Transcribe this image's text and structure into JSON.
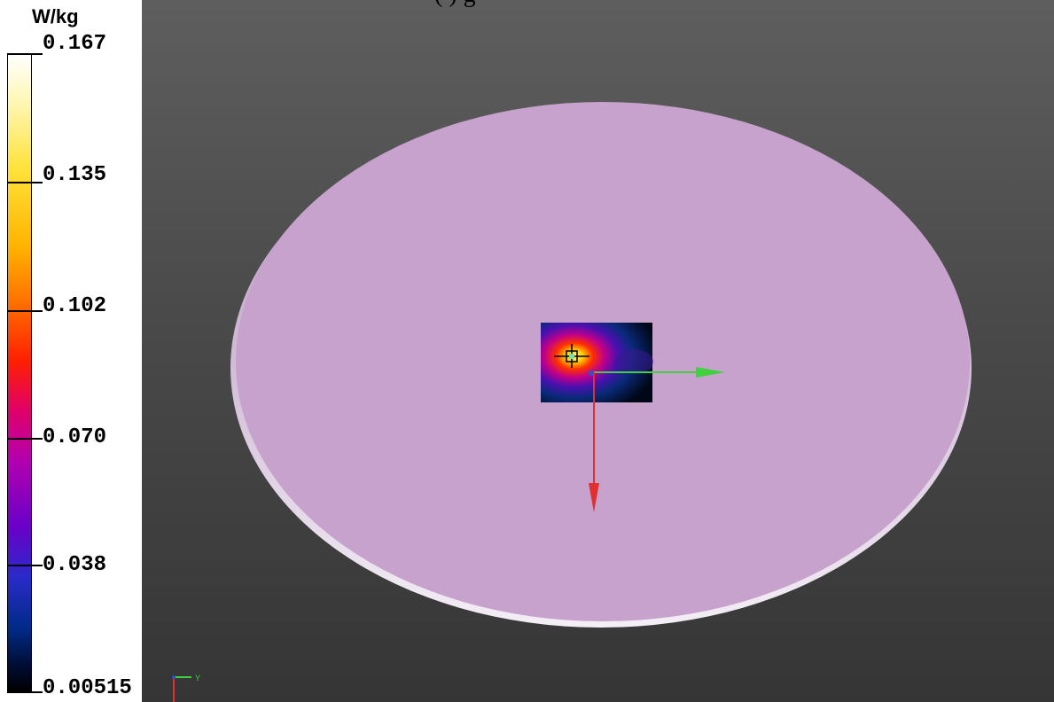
{
  "colorbar": {
    "unit": "W/kg",
    "ticks": [
      {
        "label": "0.167"
      },
      {
        "label": "0.135"
      },
      {
        "label": "0.102"
      },
      {
        "label": "0.070"
      },
      {
        "label": "0.038"
      },
      {
        "label": "0.00515"
      }
    ]
  },
  "caption": {
    "partial_text": "(         )           g"
  },
  "axis_triad": {
    "y_label": "Y"
  },
  "colors": {
    "phantom": "#c6a2cc",
    "x_axis": "#e03030",
    "y_axis": "#40d040",
    "background_top": "#5e5e5e",
    "background_bottom": "#353535"
  }
}
